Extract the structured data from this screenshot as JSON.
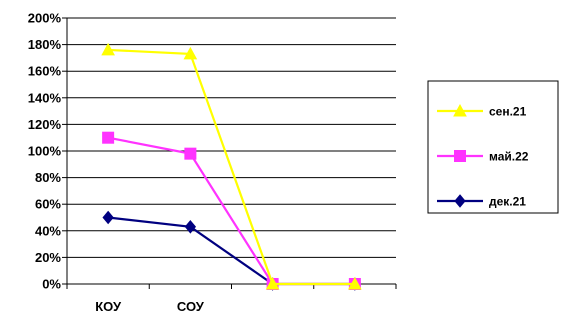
{
  "chart_data": {
    "type": "line",
    "categories": [
      "КОУ",
      "СОУ",
      "",
      ""
    ],
    "y_ticks": [
      "0%",
      "20%",
      "40%",
      "60%",
      "80%",
      "100%",
      "120%",
      "140%",
      "160%",
      "180%",
      "200%"
    ],
    "ylim": [
      0,
      200
    ],
    "y_unit": "%",
    "grid": true,
    "legend_position": "right",
    "series": [
      {
        "name": "сен.21",
        "values": [
          176,
          173,
          0,
          0
        ],
        "color": "#ffff00",
        "marker": "triangle"
      },
      {
        "name": "май.22",
        "values": [
          110,
          98,
          0,
          0
        ],
        "color": "#ff33ff",
        "marker": "square"
      },
      {
        "name": "дек.21",
        "values": [
          50,
          43,
          0,
          0
        ],
        "color": "#000080",
        "marker": "diamond"
      }
    ]
  }
}
